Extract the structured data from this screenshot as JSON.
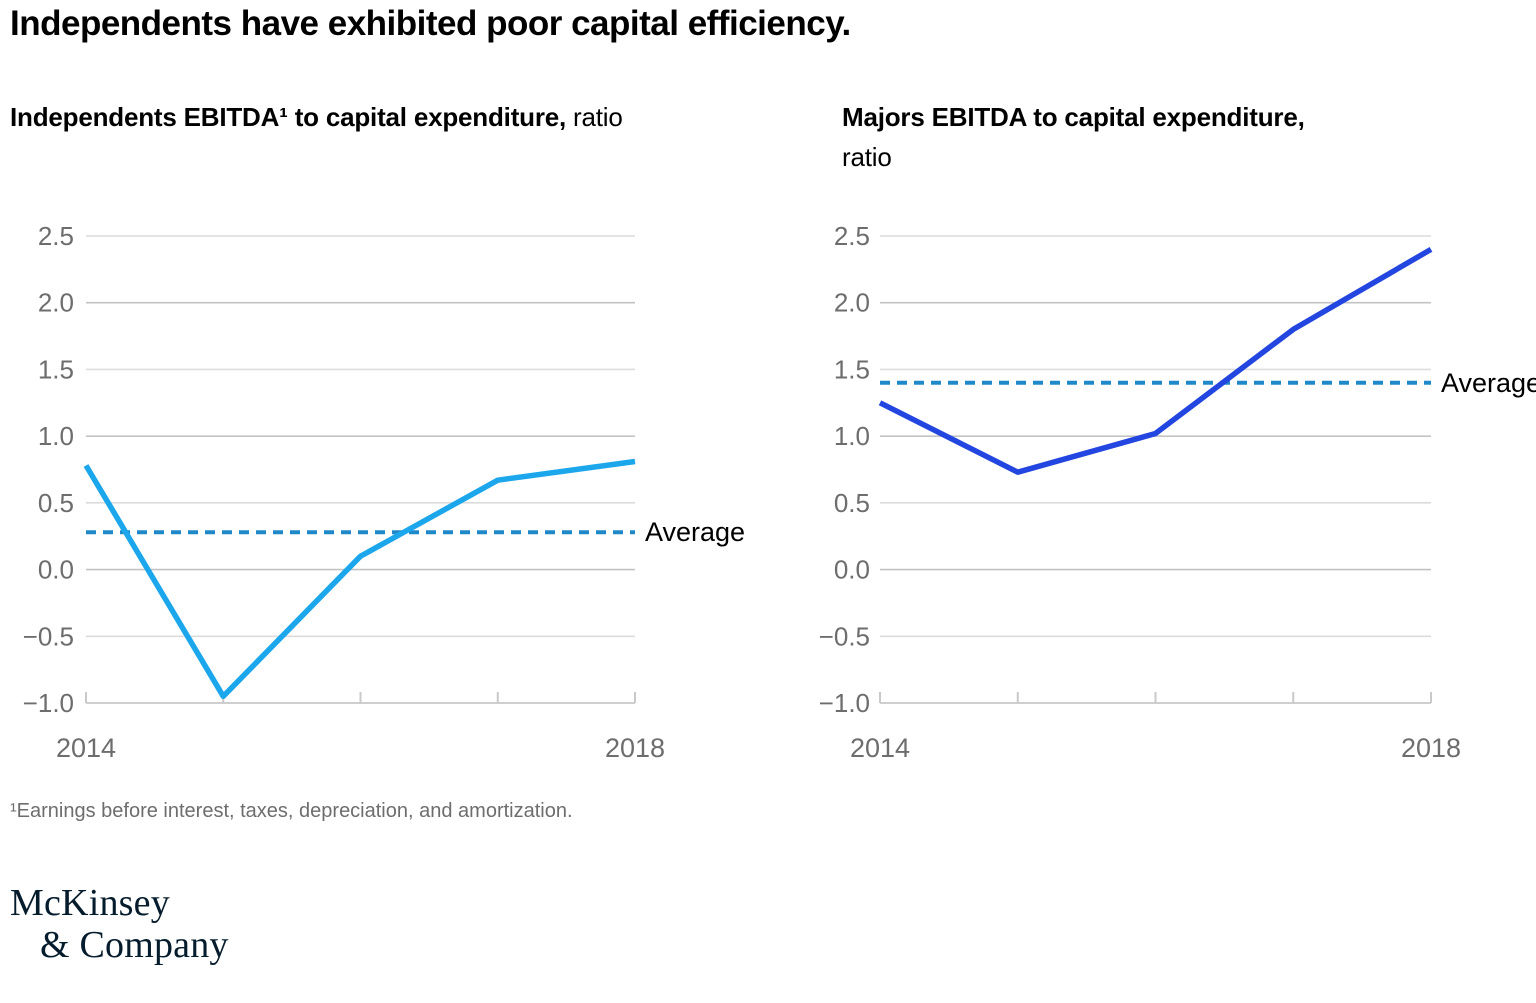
{
  "title": "Independents have exhibited poor capital efficiency.",
  "footnote": "¹Earnings before interest, taxes, depreciation, and amortization.",
  "logo": {
    "line1": "McKinsey",
    "line2": "& Company"
  },
  "colors": {
    "independents_line": "#1CA7EC",
    "majors_line": "#2346E0",
    "average_line": "#1E88C9",
    "axis_text": "#6D6D6D",
    "grid_major": "#C3C3C3",
    "grid_minor": "#DCDCDC",
    "baseline": "#CFCFCF",
    "tick": "#C9C9C9",
    "label_text": "#000000",
    "logo_text": "#051C2C"
  },
  "chart_data": [
    {
      "type": "line",
      "name": "independents",
      "title_bold": "Independents EBITDA¹ to capital expenditure,",
      "title_regular": "ratio",
      "x": [
        2014,
        2015,
        2016,
        2017,
        2018
      ],
      "values": [
        0.78,
        -0.95,
        0.1,
        0.67,
        0.81
      ],
      "average": 0.28,
      "average_label": "Average",
      "ylim": [
        -1.0,
        2.5
      ],
      "yticks": [
        2.5,
        2.0,
        1.5,
        1.0,
        0.5,
        0.0,
        -0.5,
        -1.0
      ],
      "ytick_labels": [
        "2.5",
        "2.0",
        "1.5",
        "1.0",
        "0.5",
        "0.0",
        "−0.5",
        "−1.0"
      ],
      "xtick_labels": [
        "2014",
        "",
        "",
        "",
        "2018"
      ],
      "grid": true,
      "legend_position": "none",
      "line_color_key": "independents_line"
    },
    {
      "type": "line",
      "name": "majors",
      "title_bold": "Majors EBITDA to capital expenditure,",
      "title_regular": "ratio",
      "x": [
        2014,
        2015,
        2016,
        2017,
        2018
      ],
      "values": [
        1.25,
        0.73,
        1.02,
        1.8,
        2.4
      ],
      "average": 1.4,
      "average_label": "Average",
      "ylim": [
        -1.0,
        2.5
      ],
      "yticks": [
        2.5,
        2.0,
        1.5,
        1.0,
        0.5,
        0.0,
        -0.5,
        -1.0
      ],
      "ytick_labels": [
        "2.5",
        "2.0",
        "1.5",
        "1.0",
        "0.5",
        "0.0",
        "−0.5",
        "−1.0"
      ],
      "xtick_labels": [
        "2014",
        "",
        "",
        "",
        "2018"
      ],
      "grid": true,
      "legend_position": "none",
      "line_color_key": "majors_line"
    }
  ]
}
